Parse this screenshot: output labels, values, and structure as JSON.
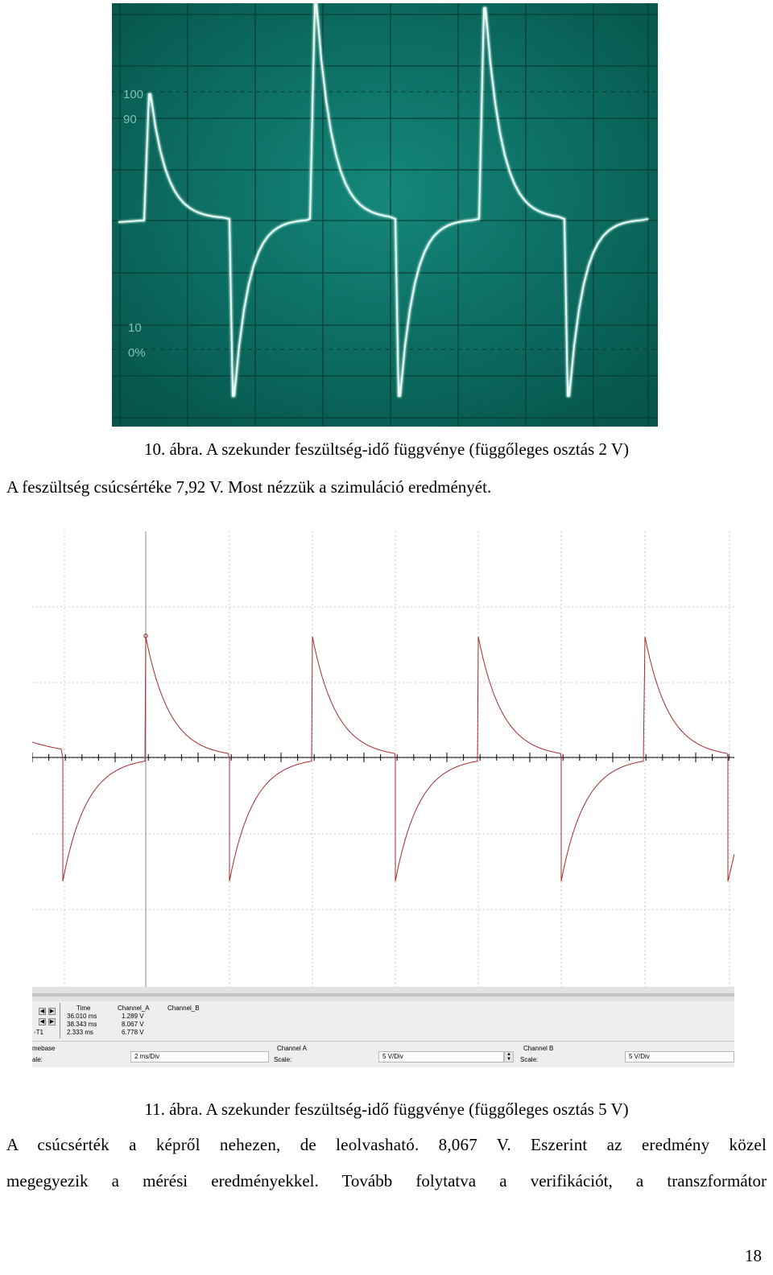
{
  "figure10": {
    "caption": "10. ábra. A szekunder feszültség-idő függvénye (függőleges osztás 2 V)",
    "graticule_labels": [
      "100",
      "90",
      "10",
      "0%"
    ]
  },
  "para1": "A feszültség csúcsértéke 7,92 V. Most nézzük a szimuláció eredményét.",
  "figure11": {
    "caption": "11. ábra. A szekunder feszültség-idő függvénye (függőleges osztás 5 V)",
    "table_headers": [
      "Time",
      "Channel_A",
      "Channel_B"
    ],
    "row_labels": [
      "",
      "",
      "-T1"
    ],
    "rows": [
      [
        "36.010 ms",
        "1.289 V"
      ],
      [
        "38.343 ms",
        "8.067 V"
      ],
      [
        "2.333 ms",
        "6.778 V"
      ]
    ],
    "timebase_label": "mebase",
    "scale_label_left": "ale:",
    "timebase_value": "2 ms/Div",
    "channel_a": {
      "title": "Channel A",
      "scale_label": "Scale:",
      "value": "5 V/Div"
    },
    "channel_b": {
      "title": "Channel B",
      "scale_label": "Scale:",
      "value": "5 V/Div"
    }
  },
  "para2_line1": "A csúcsérték a képről nehezen, de leolvasható. 8,067 V. Eszerint az eredmény közel",
  "para2_line2": "megegyezik a mérési eredményekkel. Tovább folytatva a verifikációt, a transzformátor",
  "page_number": "18",
  "colors": {
    "scope_bg": "#0b6d63",
    "scope_trace": "#cffff0",
    "sim_trace": "#a52a2a",
    "cursor": "#8a8a8a"
  }
}
